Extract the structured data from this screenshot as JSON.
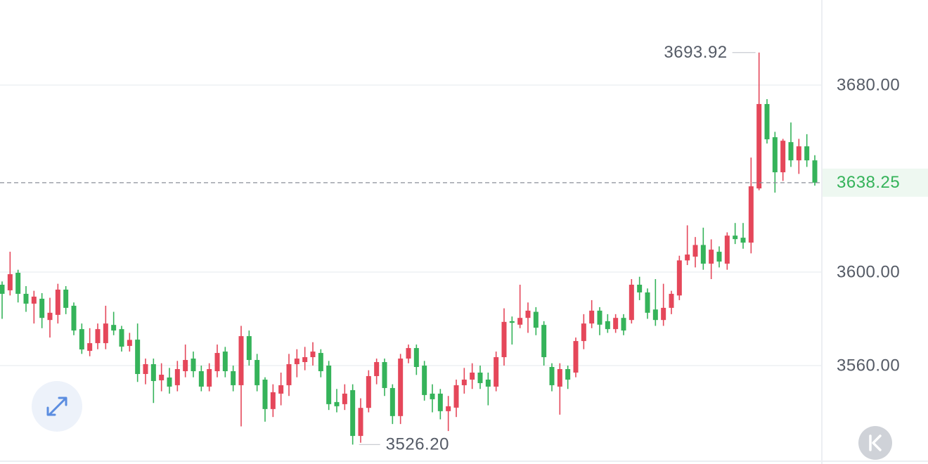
{
  "chart_data": {
    "type": "candlestick",
    "up_color": "#e5475a",
    "down_color": "#35b35a",
    "grid": true,
    "ylim": [
      3519.4,
      3716.4
    ],
    "yticks": [
      {
        "value": 3560,
        "label": "3560.00"
      },
      {
        "value": 3600,
        "label": "3600.00"
      },
      {
        "value": 3680,
        "label": "3680.00"
      }
    ],
    "last_price": {
      "value": 3638.25,
      "label": "3638.25"
    },
    "max_label": "3693.92",
    "min_label": "3526.20",
    "open": [
      3594.6,
      3592.2,
      3599.7,
      3590.7,
      3586.5,
      3588.6,
      3579.5,
      3581.7,
      3592.5,
      3585.6,
      3575.6,
      3566.3,
      3569.6,
      3569.6,
      3577.4,
      3575.6,
      3568.4,
      3571.1,
      3556.4,
      3560.6,
      3553.7,
      3554.9,
      3551.6,
      3557.6,
      3563,
      3557.6,
      3551,
      3557.6,
      3566,
      3557.6,
      3551.6,
      3572.6,
      3562.4,
      3554,
      3541.4,
      3548,
      3551.6,
      3560.6,
      3561.5,
      3563.6,
      3565.4,
      3560,
      3544.4,
      3543.5,
      3549.5,
      3529.9,
      3541.9,
      3555.5,
      3561.5,
      3550.4,
      3538.4,
      3563,
      3567.5,
      3560,
      3548,
      3548,
      3540.5,
      3542,
      3551.6,
      3554,
      3557,
      3554,
      3551,
      3563.6,
      3579,
      3577.5,
      3580.4,
      3583,
      3577.4,
      3559.4,
      3551,
      3558.5,
      3557,
      3570.5,
      3578,
      3583.5,
      3579,
      3575.6,
      3580.4,
      3579.5,
      3594.6,
      3591.3,
      3584,
      3579.5,
      3584.7,
      3590,
      3605,
      3606.6,
      3611.6,
      3603.6,
      3608.7,
      3603.6,
      3615.6,
      3614.7,
      3612.6,
      3635.8,
      3671.9,
      3657.7,
      3642.7,
      3655.6,
      3647.8,
      3653.8,
      3647.8
    ],
    "high": [
      3596,
      3608.7,
      3601,
      3594,
      3592,
      3591,
      3589,
      3595,
      3594,
      3587,
      3578,
      3576,
      3578,
      3585.6,
      3583,
      3577,
      3574,
      3578,
      3563,
      3563,
      3561,
      3559,
      3562,
      3569,
      3566,
      3560,
      3561,
      3569,
      3568,
      3560,
      3577,
      3575,
      3565,
      3555,
      3552,
      3557,
      3565,
      3567,
      3568,
      3570,
      3567,
      3562,
      3550,
      3552,
      3552,
      3546,
      3558,
      3563,
      3563,
      3552,
      3565,
      3569,
      3569,
      3562,
      3552,
      3550,
      3547,
      3554,
      3559,
      3561,
      3560,
      3557,
      3566,
      3584.5,
      3581,
      3594.6,
      3587,
      3585,
      3579,
      3561,
      3561,
      3560,
      3572,
      3582,
      3588,
      3585,
      3582,
      3582,
      3582,
      3597,
      3598,
      3593,
      3597,
      3595,
      3592,
      3607,
      3620,
      3615,
      3619,
      3614,
      3611,
      3617,
      3621,
      3621,
      3649,
      3693.92,
      3674,
      3660,
      3657,
      3664,
      3657,
      3659,
      3650
    ],
    "low": [
      3580,
      3590,
      3587,
      3583,
      3578,
      3576,
      3572,
      3578,
      3582,
      3573,
      3565,
      3564,
      3567,
      3567,
      3573,
      3566,
      3566,
      3553,
      3552,
      3544,
      3549,
      3548,
      3549,
      3555,
      3555,
      3549,
      3549,
      3555,
      3555,
      3549,
      3534,
      3560,
      3549,
      3536,
      3538,
      3543,
      3547,
      3555,
      3558,
      3560,
      3555,
      3541,
      3540,
      3541,
      3526.2,
      3527,
      3540,
      3552,
      3547,
      3535,
      3535,
      3561,
      3556,
      3545,
      3540,
      3537,
      3532,
      3538,
      3548,
      3550,
      3550,
      3543,
      3549,
      3560,
      3569,
      3576,
      3574,
      3573,
      3560,
      3549,
      3539,
      3550,
      3555,
      3567,
      3576,
      3573,
      3574,
      3574,
      3573,
      3578,
      3588,
      3580,
      3577,
      3577,
      3582,
      3588,
      3603,
      3602,
      3601,
      3597,
      3602,
      3601,
      3612,
      3610,
      3608,
      3635,
      3655,
      3634,
      3639,
      3645,
      3642,
      3645,
      3637
    ],
    "close": [
      3590.7,
      3599.1,
      3590.7,
      3586.5,
      3589.5,
      3580.4,
      3582.6,
      3592.5,
      3584.7,
      3575,
      3566.9,
      3569.6,
      3575.6,
      3578,
      3575,
      3568.1,
      3571,
      3556.4,
      3560.6,
      3553.4,
      3556.1,
      3551,
      3558.5,
      3562.4,
      3557.6,
      3551,
      3558.5,
      3565.4,
      3557.6,
      3551.6,
      3572.6,
      3562.4,
      3551.6,
      3541.4,
      3548.6,
      3551.6,
      3560.6,
      3563,
      3563.6,
      3566,
      3557.6,
      3543.5,
      3542.6,
      3548,
      3529.9,
      3541.9,
      3555.5,
      3561.5,
      3550.4,
      3538.4,
      3563,
      3567.5,
      3559.4,
      3547.4,
      3545.6,
      3540.5,
      3542.6,
      3551.6,
      3554,
      3557,
      3552.5,
      3551,
      3563.6,
      3578.7,
      3578.3,
      3580.4,
      3583.5,
      3576.2,
      3563.6,
      3551.6,
      3558.5,
      3554,
      3570.5,
      3578,
      3583.5,
      3577.5,
      3575.6,
      3580.4,
      3575,
      3594.6,
      3591.3,
      3582.6,
      3579.5,
      3584.7,
      3590.7,
      3605,
      3607.5,
      3611.6,
      3603.6,
      3609.6,
      3604.5,
      3615.6,
      3614.1,
      3612.6,
      3636.7,
      3671.9,
      3656.8,
      3642.7,
      3656.2,
      3647.8,
      3653.8,
      3647.8,
      3638.25
    ]
  }
}
